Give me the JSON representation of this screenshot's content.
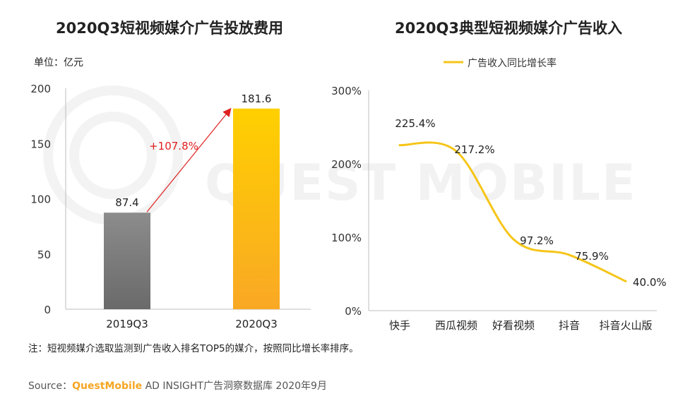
{
  "chart_data": [
    {
      "type": "bar",
      "title": "2020Q3短视频媒介广告投放费用",
      "unit_label": "单位：亿元",
      "categories": [
        "2019Q3",
        "2020Q3"
      ],
      "values": [
        87.4,
        181.6
      ],
      "value_labels": [
        "87.4",
        "181.6"
      ],
      "ylim": [
        0,
        200
      ],
      "yticks": [
        0,
        50,
        100,
        150,
        200
      ],
      "ytick_labels": [
        "0",
        "50",
        "100",
        "150",
        "200"
      ],
      "growth_annotation": "+107.8%",
      "colors": [
        "#7a7a7a",
        "#fbb616"
      ]
    },
    {
      "type": "line",
      "title": "2020Q3典型短视频媒介广告收入",
      "legend": "广告收入同比增长率",
      "categories": [
        "快手",
        "西瓜视频",
        "好看视频",
        "抖音",
        "抖音火山版"
      ],
      "values": [
        225.4,
        217.2,
        97.2,
        75.9,
        40.0
      ],
      "value_labels": [
        "225.4%",
        "217.2%",
        "97.2%",
        "75.9%",
        "40.0%"
      ],
      "ylim": [
        0,
        300
      ],
      "yticks": [
        0,
        100,
        200,
        300
      ],
      "ytick_labels": [
        "0%",
        "100%",
        "200%",
        "300%"
      ],
      "color": "#f5c518"
    }
  ],
  "note": "注：短视频媒介选取监测到广告收入排名TOP5的媒介，按照同比增长率排序。",
  "source": {
    "prefix": "Source：",
    "brand": "QuestMobile",
    "suffix": " AD INSIGHT广告洞察数据库 2020年9月"
  },
  "watermark": "QUEST MOBILE"
}
